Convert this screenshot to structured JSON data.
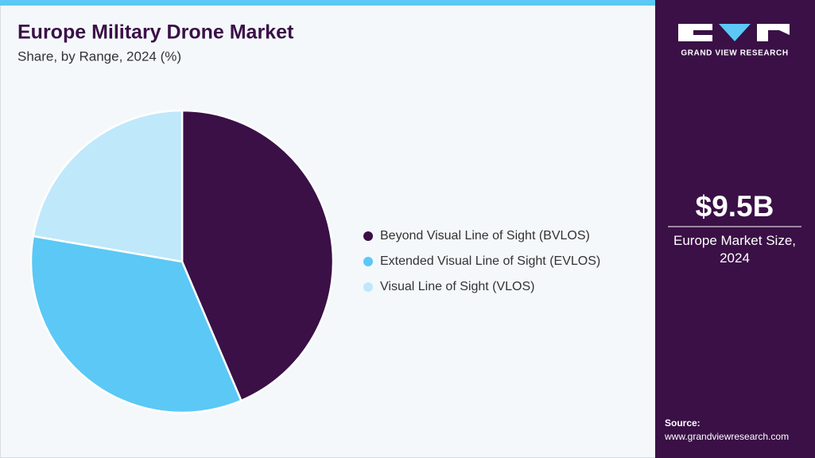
{
  "chart_data": {
    "type": "pie",
    "title": "Europe Military Drone Market",
    "subtitle": "Share, by Range, 2024 (%)",
    "categories": [
      "Beyond Visual Line of Sight (BVLOS)",
      "Extended Visual Line of Sight (EVLOS)",
      "Visual Line of Sight (VLOS)"
    ],
    "values": [
      43.6,
      34.1,
      22.3
    ],
    "colors": [
      "#3a1046",
      "#5bc8f5",
      "#bfe8fa"
    ],
    "legend": "right"
  },
  "sidebar": {
    "brand": "GRAND VIEW RESEARCH",
    "market_size": "$9.5B",
    "market_size_label": "Europe Market Size, 2024",
    "source_label": "Source:",
    "source_url": "www.grandviewresearch.com"
  }
}
